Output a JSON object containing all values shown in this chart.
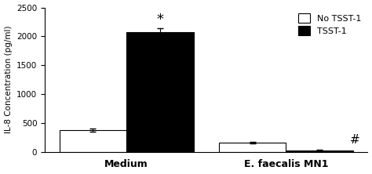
{
  "groups": [
    "Medium",
    "E. faecalis MN1"
  ],
  "no_tsst1_values": [
    375,
    155
  ],
  "tsst1_values": [
    2075,
    30
  ],
  "no_tsst1_errors": [
    30,
    12
  ],
  "tsst1_errors": [
    65,
    8
  ],
  "ylabel": "IL-8 Concentration (pg/ml)",
  "ylim": [
    0,
    2500
  ],
  "yticks": [
    0,
    500,
    1000,
    1500,
    2000,
    2500
  ],
  "bar_width": 0.42,
  "no_tsst1_color": "#ffffff",
  "tsst1_color": "#000000",
  "edge_color": "#000000",
  "star_annotation": "*",
  "hash_annotation": "#",
  "legend_labels": [
    "No TSST-1",
    "TSST-1"
  ],
  "background_color": "#ffffff",
  "fig_width": 4.74,
  "fig_height": 2.22,
  "dpi": 100
}
